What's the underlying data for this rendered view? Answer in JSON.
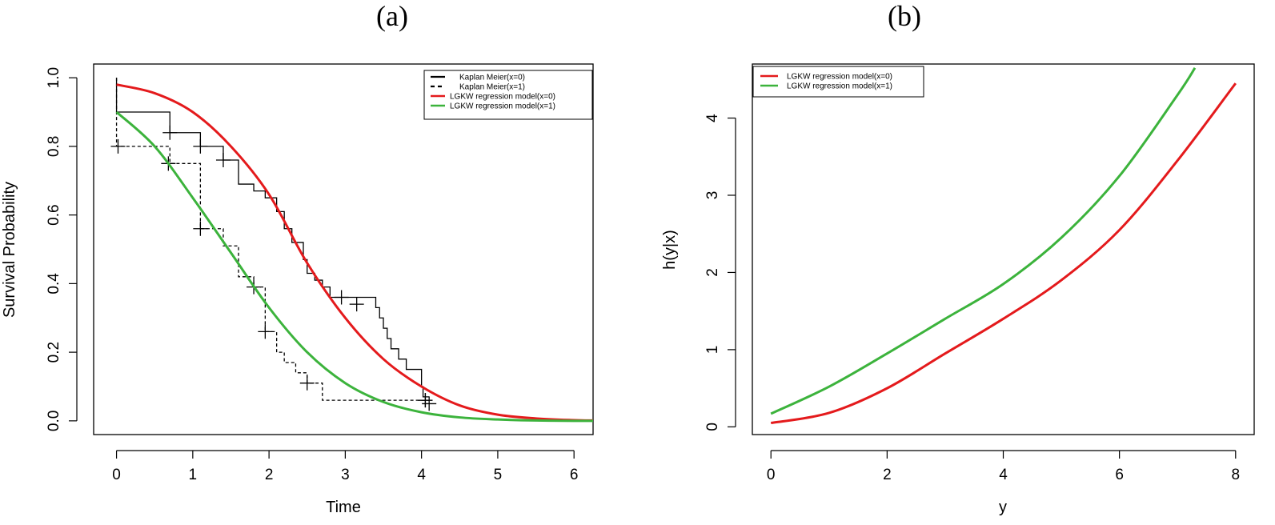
{
  "chart_data": [
    {
      "panel_label": "(a)",
      "type": "line",
      "xlabel": "Time",
      "ylabel": "Survival Probability",
      "xlim": [
        -0.3,
        6.25
      ],
      "ylim": [
        -0.04,
        1.04
      ],
      "x_ticks": [
        0,
        1,
        2,
        3,
        4,
        5,
        6
      ],
      "x_tick_labels": [
        "0",
        "1",
        "2",
        "3",
        "4",
        "5",
        "6"
      ],
      "y_ticks": [
        0,
        0.2,
        0.4,
        0.6,
        0.8,
        1.0
      ],
      "y_tick_labels": [
        "0.0",
        "0.2",
        "0.4",
        "0.6",
        "0.8",
        "1.0"
      ],
      "grid": false,
      "legend_position": "top-right",
      "series": [
        {
          "name": "Kaplan Meier(x=0)",
          "kind": "step",
          "color": "#000000",
          "dash": "solid",
          "steps": [
            [
              0,
              1.0
            ],
            [
              0,
              0.9
            ],
            [
              0.7,
              0.84
            ],
            [
              1.1,
              0.8
            ],
            [
              1.4,
              0.76
            ],
            [
              1.6,
              0.69
            ],
            [
              1.8,
              0.67
            ],
            [
              1.95,
              0.65
            ],
            [
              2.1,
              0.61
            ],
            [
              2.2,
              0.56
            ],
            [
              2.3,
              0.52
            ],
            [
              2.45,
              0.47
            ],
            [
              2.5,
              0.43
            ],
            [
              2.6,
              0.41
            ],
            [
              2.7,
              0.39
            ],
            [
              2.8,
              0.36
            ],
            [
              3.4,
              0.33
            ],
            [
              3.45,
              0.3
            ],
            [
              3.5,
              0.27
            ],
            [
              3.55,
              0.24
            ],
            [
              3.6,
              0.21
            ],
            [
              3.7,
              0.18
            ],
            [
              3.8,
              0.15
            ],
            [
              4.0,
              0.1
            ],
            [
              4.02,
              0.07
            ],
            [
              4.1,
              0.07
            ]
          ],
          "censor_marks": [
            [
              0.7,
              0.84
            ],
            [
              1.1,
              0.8
            ],
            [
              1.4,
              0.76
            ],
            [
              2.95,
              0.36
            ],
            [
              3.15,
              0.34
            ],
            [
              4.05,
              0.06
            ]
          ]
        },
        {
          "name": "Kaplan Meier(x=1)",
          "kind": "step",
          "color": "#000000",
          "dash": "dashed",
          "steps": [
            [
              0,
              1.0
            ],
            [
              0,
              0.8
            ],
            [
              0.7,
              0.75
            ],
            [
              1.1,
              0.56
            ],
            [
              1.4,
              0.51
            ],
            [
              1.6,
              0.42
            ],
            [
              1.8,
              0.39
            ],
            [
              1.95,
              0.26
            ],
            [
              2.1,
              0.2
            ],
            [
              2.2,
              0.17
            ],
            [
              2.35,
              0.14
            ],
            [
              2.5,
              0.11
            ],
            [
              2.7,
              0.06
            ],
            [
              4.1,
              0.06
            ]
          ],
          "censor_marks": [
            [
              0.02,
              0.8
            ],
            [
              0.68,
              0.75
            ],
            [
              1.1,
              0.56
            ],
            [
              1.8,
              0.39
            ],
            [
              1.95,
              0.26
            ],
            [
              2.5,
              0.11
            ],
            [
              4.05,
              0.06
            ],
            [
              4.1,
              0.05
            ]
          ]
        },
        {
          "name": "LGKW regression model(x=0)",
          "kind": "curve",
          "color": "#e41a1c",
          "points": [
            [
              0,
              0.98
            ],
            [
              0.5,
              0.955
            ],
            [
              1.0,
              0.9
            ],
            [
              1.5,
              0.8
            ],
            [
              2.0,
              0.66
            ],
            [
              2.5,
              0.46
            ],
            [
              3.0,
              0.3
            ],
            [
              3.5,
              0.18
            ],
            [
              4.0,
              0.1
            ],
            [
              4.5,
              0.045
            ],
            [
              5.0,
              0.018
            ],
            [
              5.5,
              0.007
            ],
            [
              6.0,
              0.002
            ],
            [
              6.25,
              0.001
            ]
          ]
        },
        {
          "name": "LGKW regression model(x=1)",
          "kind": "curve",
          "color": "#3cb33c",
          "points": [
            [
              0,
              0.9
            ],
            [
              0.5,
              0.8
            ],
            [
              1.0,
              0.65
            ],
            [
              1.5,
              0.49
            ],
            [
              2.0,
              0.33
            ],
            [
              2.5,
              0.2
            ],
            [
              3.0,
              0.11
            ],
            [
              3.5,
              0.055
            ],
            [
              4.0,
              0.025
            ],
            [
              4.5,
              0.01
            ],
            [
              5.0,
              0.004
            ],
            [
              5.5,
              0.001
            ],
            [
              6.0,
              0.0
            ],
            [
              6.25,
              0.0
            ]
          ]
        }
      ]
    },
    {
      "panel_label": "(b)",
      "type": "line",
      "xlabel": "y",
      "ylabel": "h(y|x)",
      "xlim": [
        -0.32,
        8.32
      ],
      "ylim": [
        -0.1,
        4.7
      ],
      "x_ticks": [
        0,
        2,
        4,
        6,
        8
      ],
      "x_tick_labels": [
        "0",
        "2",
        "4",
        "6",
        "8"
      ],
      "y_ticks": [
        0,
        1,
        2,
        3,
        4
      ],
      "y_tick_labels": [
        "0",
        "1",
        "2",
        "3",
        "4"
      ],
      "grid": false,
      "legend_position": "top-left",
      "series": [
        {
          "name": "LGKW regression model(x=0)",
          "kind": "curve",
          "color": "#e41a1c",
          "points": [
            [
              0,
              0.05
            ],
            [
              1,
              0.18
            ],
            [
              2,
              0.5
            ],
            [
              3,
              0.95
            ],
            [
              4,
              1.4
            ],
            [
              5,
              1.9
            ],
            [
              6,
              2.55
            ],
            [
              7,
              3.45
            ],
            [
              8,
              4.45
            ]
          ]
        },
        {
          "name": "LGKW regression model(x=1)",
          "kind": "curve",
          "color": "#3cb33c",
          "points": [
            [
              0,
              0.17
            ],
            [
              1,
              0.52
            ],
            [
              2,
              0.95
            ],
            [
              3,
              1.4
            ],
            [
              4,
              1.85
            ],
            [
              5,
              2.45
            ],
            [
              6,
              3.25
            ],
            [
              7,
              4.3
            ],
            [
              7.3,
              4.65
            ]
          ]
        }
      ]
    }
  ]
}
